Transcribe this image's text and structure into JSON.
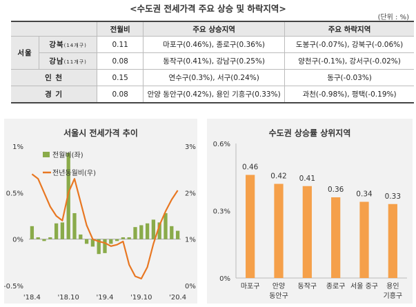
{
  "title": "<수도권 전세가격 주요 상승 및 하락지역>",
  "unit": "(단위 : %)",
  "table": {
    "headers": {
      "mom": "전월비",
      "rise": "주요 상승지역",
      "fall": "주요 하락지역"
    },
    "seoul_label": "서울",
    "rows": [
      {
        "name": "강북",
        "sub": "(14개구)",
        "mom": "0.11",
        "rise": "마포구(0.46%), 종로구(0.36%)",
        "fall": "도봉구(-0.07%), 강북구(-0.06%)"
      },
      {
        "name": "강남",
        "sub": "(11개구)",
        "mom": "0.08",
        "rise": "동작구(0.41%), 강남구(0.25%)",
        "fall": "양천구(-0.1%), 강서구(-0.02%)"
      },
      {
        "name": "인  천",
        "sub": "",
        "mom": "0.15",
        "rise": "연수구(0.3%), 서구(0.24%)",
        "fall": "동구(-0.03%)"
      },
      {
        "name": "경  기",
        "sub": "",
        "mom": "0.08",
        "rise": "안양 동안구(0.42%), 용인 기흥구(0.33%)",
        "fall": "과천(-0.98%), 평택(-0.19%)"
      }
    ]
  },
  "chart_data": [
    {
      "type": "bar+line",
      "title": "서울시 전세가격 추이",
      "legend": [
        "전월비(좌)",
        "전년동월비(우)"
      ],
      "y_left": {
        "range": [
          -0.5,
          1.0
        ],
        "ticks": [
          "1%",
          "0.5%",
          "0%",
          "-0.5%"
        ],
        "tick_values": [
          1.0,
          0.5,
          0.0,
          -0.5
        ]
      },
      "y_right": {
        "range": [
          0,
          3
        ],
        "ticks": [
          "3%",
          "2%",
          "1%",
          "0%"
        ],
        "tick_values": [
          3,
          2,
          1,
          0
        ]
      },
      "x_ticks": [
        "'18.4",
        "'18.10",
        "'19.4",
        "'19.10",
        "'20.4"
      ],
      "x_tick_index": [
        0,
        6,
        12,
        18,
        24
      ],
      "series": [
        {
          "name": "전월비(좌)",
          "axis": "left",
          "color": "#8aab4a",
          "values": [
            0.14,
            0.02,
            -0.02,
            0.02,
            0.17,
            0.18,
            0.93,
            0.28,
            0.05,
            -0.05,
            -0.08,
            -0.16,
            -0.15,
            -0.05,
            -0.02,
            0.02,
            0.02,
            0.13,
            0.15,
            0.17,
            0.21,
            0.18,
            0.28,
            0.14,
            0.09
          ]
        },
        {
          "name": "전년동월비(우)",
          "axis": "right",
          "color": "#e87722",
          "values": [
            2.4,
            2.3,
            2.0,
            1.7,
            1.5,
            1.4,
            2.0,
            2.3,
            1.8,
            1.3,
            1.0,
            0.95,
            0.92,
            0.85,
            0.88,
            0.95,
            0.45,
            0.2,
            0.15,
            0.4,
            0.9,
            1.3,
            1.6,
            1.85,
            2.05
          ]
        }
      ]
    },
    {
      "type": "bar",
      "title": "수도권 상승률 상위지역",
      "categories": [
        "마포구",
        "안양\n동안구",
        "동작구",
        "종로구",
        "서울 중구",
        "용인\n기흥구"
      ],
      "values": [
        0.46,
        0.42,
        0.41,
        0.36,
        0.34,
        0.33
      ],
      "labels": [
        "0.46",
        "0.42",
        "0.41",
        "0.36",
        "0.34",
        "0.33"
      ],
      "ylim": [
        0,
        0.6
      ],
      "ticks": [
        "0.6%",
        "0.3%",
        "0%"
      ],
      "tick_values": [
        0.6,
        0.3,
        0.0
      ],
      "color": "#f5a04a"
    }
  ]
}
